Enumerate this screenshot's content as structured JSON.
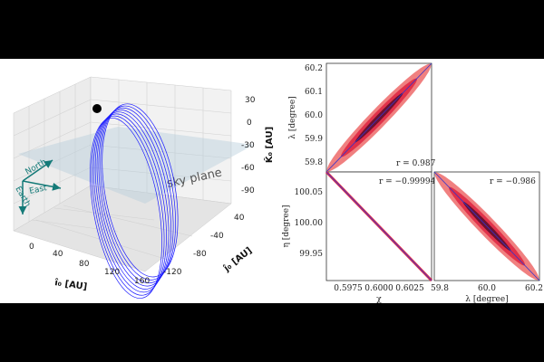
{
  "chart_data": [
    {
      "type": "line3d",
      "xlabel": "î₀ [AU]",
      "ylabel": "ĵ₀ [AU]",
      "zlabel": "K̂₀ [AU]",
      "x_ticks": [
        "0",
        "40",
        "80",
        "120",
        "160"
      ],
      "y_ticks": [
        "40",
        "-40",
        "-80",
        "-120"
      ],
      "z_ticks": [
        "30",
        "0",
        "-30",
        "-60",
        "-90"
      ],
      "annotations": {
        "sky_plane": "sky plane",
        "north": "North",
        "east": "East",
        "earth": "Earth"
      },
      "orbit_count": 8,
      "colors": {
        "orbit": "#1a1aff",
        "arrows": "#147a78",
        "plane": "#b9cfdb"
      }
    },
    {
      "type": "contour",
      "xlabel": "",
      "ylabel": "λ [degree]",
      "y_ticks": [
        "60.2",
        "60.1",
        "60.0",
        "59.9",
        "59.8"
      ],
      "ylim": [
        59.78,
        60.22
      ],
      "correlation_label": "r = 0.987"
    },
    {
      "type": "contour",
      "xlabel": "χ",
      "ylabel": "η [degree]",
      "x_ticks": [
        "0.5975",
        "0.6000",
        "0.6025"
      ],
      "xlim": [
        0.5955,
        0.6045
      ],
      "y_ticks": [
        "100.05",
        "100.00",
        "99.95"
      ],
      "ylim": [
        99.91,
        100.09
      ],
      "correlation_label": "r = −0.99994"
    },
    {
      "type": "contour",
      "xlabel": "λ [degree]",
      "ylabel": "",
      "x_ticks": [
        "59.8",
        "60.0",
        "60.2"
      ],
      "xlim": [
        59.78,
        60.22
      ],
      "correlation_label": "r = −0.986"
    }
  ]
}
